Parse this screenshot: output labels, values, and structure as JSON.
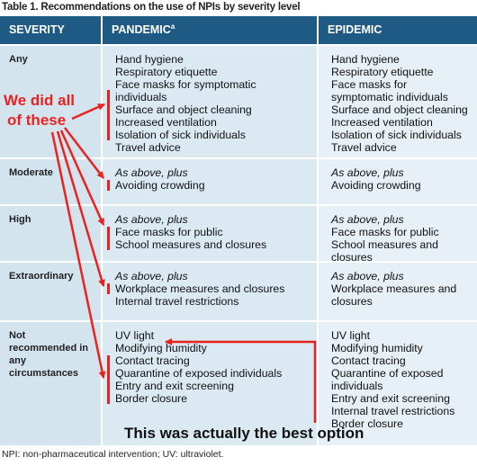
{
  "title": "Table 1. Recommendations on the use of NPIs by severity level",
  "table": {
    "header": [
      "SEVERITY",
      "PANDEMIC",
      "EPIDEMIC"
    ],
    "header_superscript": "a",
    "rows": [
      {
        "severity": "Any",
        "pandemic": {
          "items": [
            "Hand hygiene",
            "Respiratory etiquette",
            "Face masks for symptomatic individuals",
            "Surface and object cleaning",
            "Increased ventilation",
            "Isolation of sick individuals",
            "Travel advice"
          ]
        },
        "epidemic": {
          "items": [
            "Hand hygiene",
            "Respiratory etiquette",
            "Face masks for symptomatic individuals",
            "Surface and object cleaning",
            "Increased ventilation",
            "Isolation of sick individuals",
            "Travel advice"
          ]
        }
      },
      {
        "severity": "Moderate",
        "pandemic": {
          "intro": "As above, plus",
          "items": [
            "Avoiding crowding"
          ]
        },
        "epidemic": {
          "intro": "As above, plus",
          "items": [
            "Avoiding crowding"
          ]
        }
      },
      {
        "severity": "High",
        "pandemic": {
          "intro": "As above, plus",
          "items": [
            "Face masks for public",
            "School measures and closures"
          ]
        },
        "epidemic": {
          "intro": "As above, plus",
          "items": [
            "Face masks for public",
            "School measures and closures"
          ]
        }
      },
      {
        "severity": "Extraordinary",
        "pandemic": {
          "intro": "As above, plus",
          "items": [
            "Workplace measures and closures",
            "Internal travel restrictions"
          ]
        },
        "epidemic": {
          "intro": "As above, plus",
          "items": [
            "Workplace measures and closures"
          ]
        }
      },
      {
        "severity": "Not recommended in any circumstances",
        "pandemic": {
          "items": [
            "UV light",
            "Modifying humidity",
            "Contact tracing",
            "Quarantine of exposed individuals",
            "Entry and exit screening",
            "Border closure"
          ]
        },
        "epidemic": {
          "items": [
            "UV light",
            "Modifying humidity",
            "Contact tracing",
            "Quarantine of exposed individuals",
            "Entry and exit screening",
            "Internal travel restrictions",
            "Border closure"
          ]
        }
      }
    ]
  },
  "annotations": {
    "left": [
      "We did all",
      "of these"
    ],
    "bottom": "This was actually the best option"
  },
  "footnote": "NPI: non-pharmaceutical intervention; UV: ultraviolet."
}
